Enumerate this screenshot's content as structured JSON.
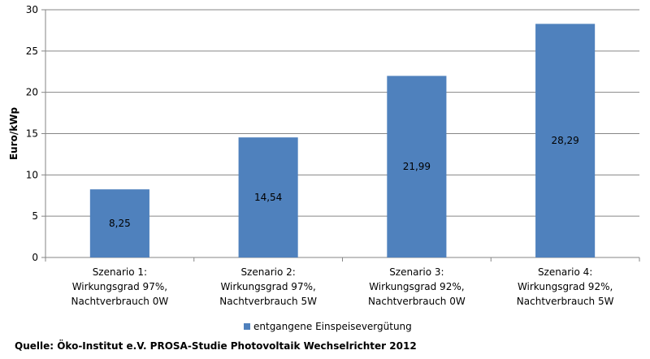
{
  "chart_data": {
    "type": "bar",
    "categories": [
      [
        "Szenario 1:",
        "Wirkungsgrad 97%,",
        "Nachtverbrauch 0W"
      ],
      [
        "Szenario 2:",
        "Wirkungsgrad  97%,",
        "Nachtverbrauch 5W"
      ],
      [
        "Szenario 3:",
        "Wirkungsgrad  92%,",
        "Nachtverbrauch 0W"
      ],
      [
        "Szenario 4:",
        "Wirkungsgrad  92%,",
        "Nachtverbrauch 5W"
      ]
    ],
    "series": [
      {
        "name": "entgangene Einspeisevergütung",
        "values": [
          8.25,
          14.54,
          21.99,
          28.29
        ],
        "labels": [
          "8,25",
          "14,54",
          "21,99",
          "28,29"
        ],
        "color": "#4f81bd"
      }
    ],
    "ylabel": "Euro/kWp",
    "ylim": [
      0,
      30
    ],
    "yticks": [
      0,
      5,
      10,
      15,
      20,
      25,
      30
    ],
    "grid": true,
    "gridColor": "#868686",
    "legend_position": "bottom"
  },
  "source": "Quelle: Öko-Institut e.V. PROSA-Studie Photovoltaik Wechselrichter 2012"
}
